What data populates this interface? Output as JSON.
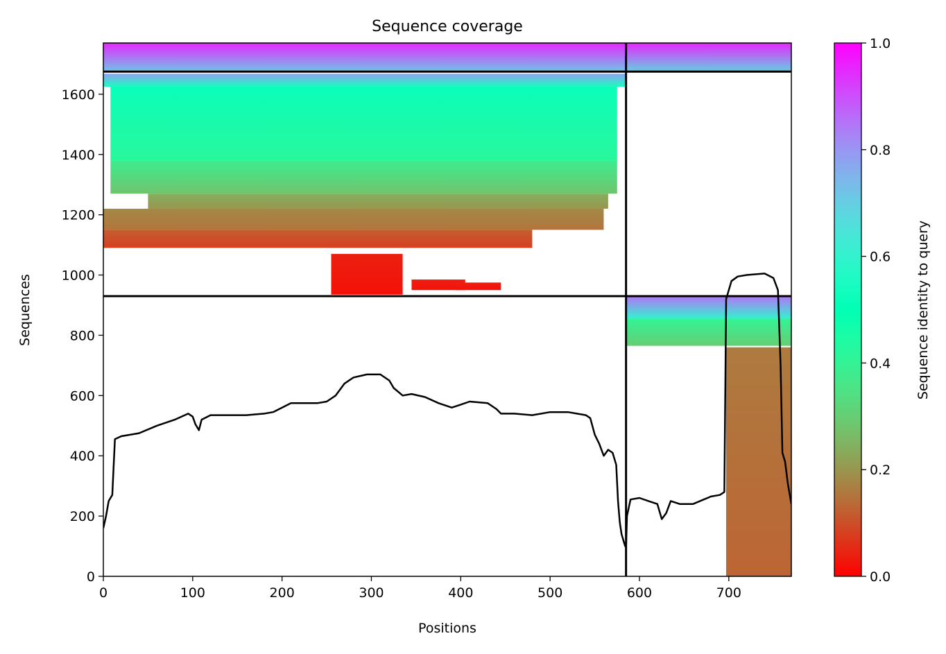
{
  "chart_data": {
    "type": "heatmap",
    "title": "Sequence coverage",
    "xlabel": "Positions",
    "ylabel": "Sequences",
    "xlim": [
      0,
      770
    ],
    "ylim": [
      0,
      1770
    ],
    "xticks": [
      "0",
      "100",
      "200",
      "300",
      "400",
      "500",
      "600",
      "700"
    ],
    "xtick_values": [
      0,
      100,
      200,
      300,
      400,
      500,
      600,
      700
    ],
    "yticks": [
      "0",
      "200",
      "400",
      "600",
      "800",
      "1000",
      "1200",
      "1400",
      "1600"
    ],
    "ytick_values": [
      0,
      200,
      400,
      600,
      800,
      1000,
      1200,
      1400,
      1600
    ],
    "colorbar": {
      "label": "Sequence identity to query",
      "ticks": [
        "0.0",
        "0.2",
        "0.4",
        "0.6",
        "0.8",
        "1.0"
      ],
      "tick_values": [
        0.0,
        0.2,
        0.4,
        0.6,
        0.8,
        1.0
      ],
      "colormap": "rainbow_r",
      "range": [
        0,
        1
      ]
    },
    "separators": {
      "x": [
        585
      ],
      "y": [
        930,
        1675
      ]
    },
    "blocks": [
      {
        "block": "A",
        "x_range": [
          0,
          585
        ],
        "rows": [
          {
            "y": [
              1675,
              1770
            ],
            "x": [
              0,
              585
            ],
            "identity_top": 0.95,
            "identity_bottom": 0.72
          },
          {
            "y": [
              1625,
              1668
            ],
            "x": [
              0,
              585
            ],
            "identity_top": 0.78,
            "identity_bottom": 0.55
          },
          {
            "y": [
              1380,
              1625
            ],
            "x": [
              8,
              575
            ],
            "identity_top": 0.52,
            "identity_bottom": 0.42
          },
          {
            "y": [
              1270,
              1380
            ],
            "x": [
              8,
              575
            ],
            "identity_top": 0.38,
            "identity_bottom": 0.28
          },
          {
            "y": [
              1220,
              1270
            ],
            "x": [
              50,
              565
            ],
            "identity_top": 0.24,
            "identity_bottom": 0.2
          },
          {
            "y": [
              1150,
              1220
            ],
            "x": [
              0,
              560
            ],
            "identity_top": 0.18,
            "identity_bottom": 0.15
          },
          {
            "y": [
              1090,
              1150
            ],
            "x": [
              0,
              480
            ],
            "identity_top": 0.12,
            "identity_bottom": 0.08
          },
          {
            "y": [
              935,
              1070
            ],
            "x": [
              255,
              335
            ],
            "identity_top": 0.04,
            "identity_bottom": 0.02
          },
          {
            "y": [
              950,
              985
            ],
            "x": [
              345,
              405
            ],
            "identity_top": 0.04,
            "identity_bottom": 0.02
          },
          {
            "y": [
              950,
              975
            ],
            "x": [
              395,
              445
            ],
            "identity_top": 0.04,
            "identity_bottom": 0.02
          }
        ]
      },
      {
        "block": "B",
        "x_range": [
          585,
          770
        ],
        "rows": [
          {
            "y": [
              1675,
              1770
            ],
            "x": [
              585,
              770
            ],
            "identity_top": 0.95,
            "identity_bottom": 0.7
          },
          {
            "y": [
              855,
              930
            ],
            "x": [
              585,
              770
            ],
            "identity_top": 0.85,
            "identity_bottom": 0.6
          },
          {
            "y": [
              765,
              855
            ],
            "x": [
              585,
              770
            ],
            "identity_top": 0.4,
            "identity_bottom": 0.3
          },
          {
            "y": [
              0,
              760
            ],
            "x": [
              697,
              770
            ],
            "identity_top": 0.16,
            "identity_bottom": 0.13
          }
        ]
      }
    ],
    "coverage_line": {
      "x": [
        0,
        3,
        6,
        10,
        13,
        20,
        40,
        60,
        80,
        95,
        100,
        103,
        107,
        110,
        120,
        140,
        160,
        180,
        190,
        200,
        210,
        240,
        250,
        260,
        270,
        280,
        295,
        310,
        320,
        325,
        335,
        345,
        360,
        375,
        390,
        400,
        410,
        430,
        440,
        445,
        460,
        480,
        500,
        520,
        530,
        540,
        545,
        550,
        555,
        560,
        565,
        570,
        574,
        576,
        578,
        580,
        582,
        584,
        585,
        586,
        590,
        600,
        610,
        620,
        625,
        630,
        635,
        645,
        660,
        680,
        690,
        695,
        697,
        700,
        703,
        710,
        720,
        740,
        750,
        755,
        758,
        760,
        763,
        766,
        770
      ],
      "y": [
        160,
        200,
        250,
        270,
        455,
        465,
        475,
        500,
        520,
        540,
        530,
        505,
        485,
        520,
        535,
        535,
        535,
        540,
        545,
        560,
        575,
        575,
        580,
        600,
        640,
        660,
        670,
        670,
        650,
        625,
        600,
        605,
        595,
        575,
        560,
        570,
        580,
        575,
        555,
        540,
        540,
        535,
        545,
        545,
        540,
        535,
        525,
        470,
        440,
        400,
        420,
        410,
        370,
        250,
        180,
        140,
        120,
        100,
        100,
        200,
        255,
        260,
        250,
        240,
        190,
        210,
        250,
        240,
        240,
        265,
        270,
        280,
        920,
        950,
        980,
        995,
        1000,
        1005,
        990,
        950,
        700,
        410,
        380,
        310,
        240
      ]
    }
  }
}
